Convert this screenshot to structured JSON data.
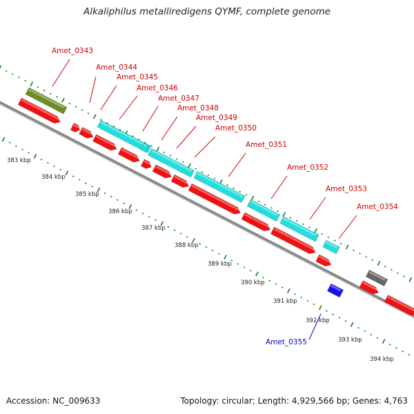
{
  "title": "Alkaliphilus metalliredigens QYMF, complete genome",
  "footer": {
    "accession_label": "Accession:",
    "accession": "NC_009633",
    "topology_label": "Topology:",
    "topology": "circular",
    "length_label": "Length:",
    "length": "4,929,566 bp",
    "genes_label": "Genes:",
    "genes": "4,763"
  },
  "footer_text": {
    "accession": "Accession: NC_009633",
    "summary": "Topology: circular; Length: 4,929,566 bp; Genes: 4,763"
  },
  "colors": {
    "forward_gene": "#ee1111",
    "cds_feature": "#22dddd",
    "reverse_gene": "#1111ee",
    "rrna_feature": "#6b8e23",
    "other_feature": "#666666",
    "backbone": "#888888",
    "tick": "#228b22",
    "label_red": "#cc0000",
    "label_blue": "#0000cc"
  },
  "kbp_ticks": [
    "383 kbp",
    "384 kbp",
    "385 kbp",
    "386 kbp",
    "387 kbp",
    "388 kbp",
    "389 kbp",
    "390 kbp",
    "391 kbp",
    "392 kbp",
    "393 kbp",
    "394 kbp"
  ],
  "gene_labels": [
    {
      "text": "Amet_0343",
      "color": "red"
    },
    {
      "text": "Amet_0344",
      "color": "red"
    },
    {
      "text": "Amet_0345",
      "color": "red"
    },
    {
      "text": "Amet_0346",
      "color": "red"
    },
    {
      "text": "Amet_0347",
      "color": "red"
    },
    {
      "text": "Amet_0348",
      "color": "red"
    },
    {
      "text": "Amet_0349",
      "color": "red"
    },
    {
      "text": "Amet_0350",
      "color": "red"
    },
    {
      "text": "Amet_0351",
      "color": "red"
    },
    {
      "text": "Amet_0352",
      "color": "red"
    },
    {
      "text": "Amet_0353",
      "color": "red"
    },
    {
      "text": "Amet_0354",
      "color": "red"
    },
    {
      "text": "Amet_0355",
      "color": "blue"
    }
  ]
}
